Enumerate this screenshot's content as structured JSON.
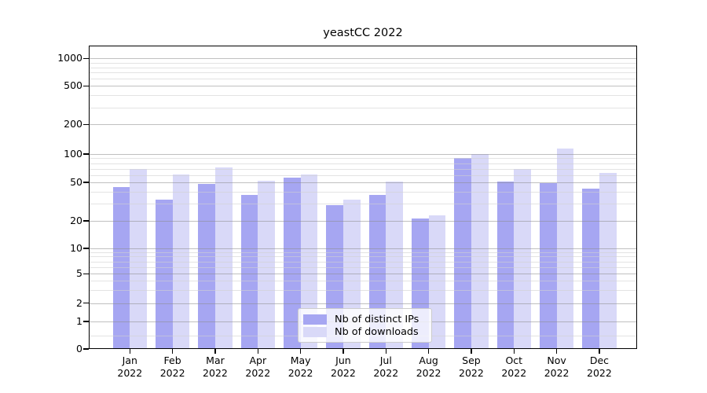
{
  "figure": {
    "background": "#ffffff"
  },
  "chart_data": {
    "type": "bar",
    "title": "yeastCC 2022",
    "categories": [
      "Jan",
      "Feb",
      "Mar",
      "Apr",
      "May",
      "Jun",
      "Jul",
      "Aug",
      "Sep",
      "Oct",
      "Nov",
      "Dec"
    ],
    "category_year": "2022",
    "series": [
      {
        "name": "Nb of distinct IPs",
        "color": "#a6a6f2",
        "values": [
          45,
          33,
          48,
          37,
          56,
          29,
          37,
          21,
          90,
          51,
          49,
          43
        ]
      },
      {
        "name": "Nb of downloads",
        "color": "#d9d9f8",
        "values": [
          69,
          61,
          72,
          52,
          61,
          33,
          51,
          23,
          100,
          70,
          114,
          63
        ]
      }
    ],
    "yticks": [
      0,
      1,
      2,
      5,
      10,
      20,
      50,
      100,
      200,
      500,
      1000
    ],
    "yscale": "symlog",
    "ylim": [
      0,
      1400
    ],
    "xlabel": "",
    "ylabel": "",
    "grid": true,
    "legend_position": "lower center"
  }
}
